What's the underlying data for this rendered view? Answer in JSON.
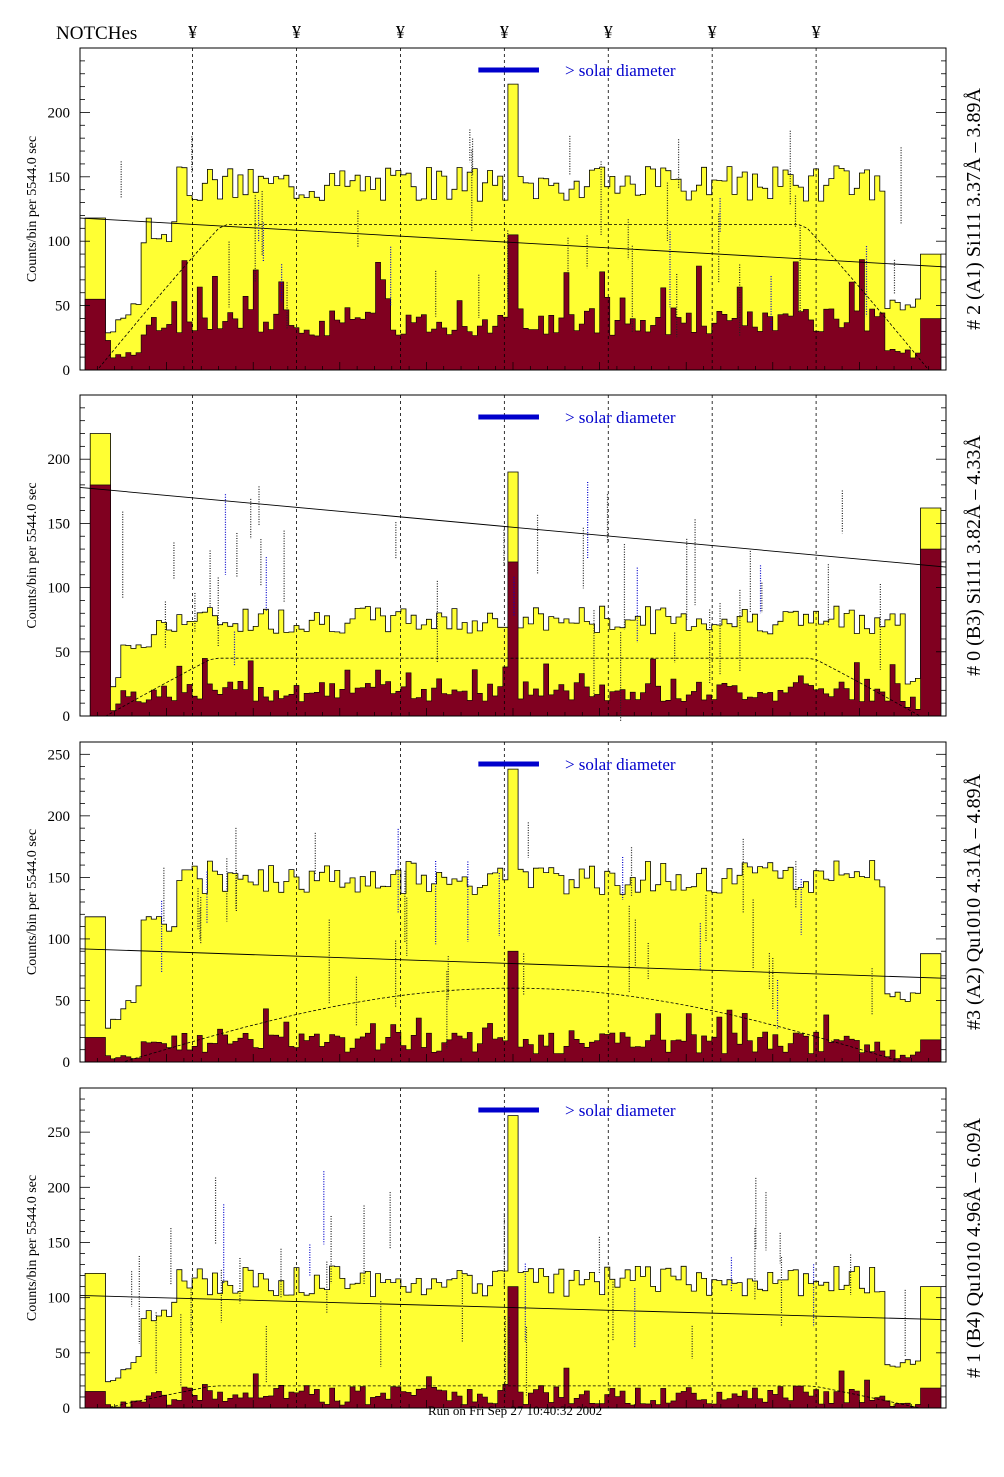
{
  "header": {
    "notches_label": "NOTCHes",
    "notch_symbol": "¥",
    "footer": "Run on Fri Sep 27 10:40:32 2002"
  },
  "colors": {
    "fill_outer": "#ffff33",
    "fill_inner": "#800020",
    "annotation_blue": "#0000cc",
    "annotation_purple": "#660066"
  },
  "notch_positions": [
    130,
    250,
    370,
    490,
    610,
    730,
    850
  ],
  "chart_data": [
    {
      "type": "bar",
      "title": "# 2 (A1) Si111  3.37Å – 3.89Å",
      "ylabel": "Counts/bin per   5544.0 sec",
      "legend": "> solar diameter",
      "xlim": [
        0,
        1000
      ],
      "ylim": [
        0,
        250
      ],
      "yticks": [
        0,
        50,
        100,
        150,
        200
      ],
      "outer_level": 145,
      "outer_noise": 14,
      "inner_level": 33,
      "inner_noise": 11,
      "edge_fall": [
        0.07,
        0.93
      ],
      "spike_x": 500,
      "spike_y": 222,
      "spike_inner": 105,
      "left_end": [
        0.02,
        118,
        55
      ],
      "right_end": [
        0.985,
        90,
        40
      ],
      "trend": [
        118,
        80
      ],
      "dashed": "plateau",
      "dashed_level": 113,
      "seed": 3
    },
    {
      "type": "bar",
      "title": "# 0 (B3) Si111  3.82Å – 4.33Å",
      "ylabel": "Counts/bin per   5544.0 sec",
      "legend": "> solar diameter",
      "xlim": [
        0,
        1000
      ],
      "ylim": [
        0,
        250
      ],
      "yticks": [
        0,
        50,
        100,
        150,
        200
      ],
      "outer_level": 75,
      "outer_noise": 11,
      "inner_level": 16,
      "inner_noise": 8,
      "edge_fall": [
        0.05,
        0.95
      ],
      "spike_x": 500,
      "spike_y": 190,
      "spike_inner": 120,
      "left_end": [
        0.025,
        220,
        180
      ],
      "right_end": [
        0.985,
        162,
        130
      ],
      "trend": [
        178,
        116
      ],
      "dashed": "flat",
      "dashed_level": 45,
      "seed": 7
    },
    {
      "type": "bar",
      "title": "#3 (A2) Qu1010  4.31Å – 4.89Å",
      "ylabel": "Counts/bin per   5544.0 sec",
      "legend": "> solar diameter",
      "xlim": [
        0,
        1000
      ],
      "ylim": [
        0,
        260
      ],
      "yticks": [
        0,
        50,
        100,
        150,
        200,
        250
      ],
      "outer_level": 150,
      "outer_noise": 14,
      "inner_level": 12,
      "inner_noise": 9,
      "edge_fall": [
        0.07,
        0.93
      ],
      "spike_x": 500,
      "spike_y": 238,
      "spike_inner": 90,
      "left_end": [
        0.02,
        118,
        20
      ],
      "right_end": [
        0.985,
        88,
        18
      ],
      "trend": [
        92,
        68
      ],
      "dashed": "hump",
      "dashed_level": 60,
      "seed": 11
    },
    {
      "type": "bar",
      "title": "# 1 (B4) Qu1010 4.96Å – 6.09Å",
      "ylabel": "Counts/bin per   5544.0 sec",
      "legend": "> solar diameter",
      "xlim": [
        0,
        1000
      ],
      "ylim": [
        0,
        290
      ],
      "yticks": [
        0,
        50,
        100,
        150,
        200,
        250
      ],
      "outer_level": 115,
      "outer_noise": 14,
      "inner_level": 8,
      "inner_noise": 9,
      "edge_fall": [
        0.07,
        0.93
      ],
      "spike_x": 500,
      "spike_y": 265,
      "spike_inner": 110,
      "left_end": [
        0.02,
        122,
        15
      ],
      "right_end": [
        0.985,
        110,
        18
      ],
      "trend": [
        102,
        80
      ],
      "dashed": "low",
      "dashed_level": 20,
      "seed": 19
    }
  ]
}
